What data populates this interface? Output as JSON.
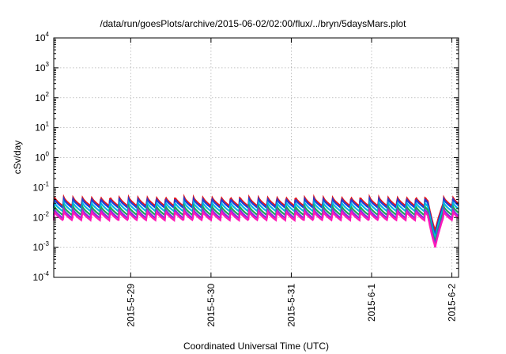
{
  "chart_data": {
    "type": "line",
    "title": "/data/run/goesPlots/archive/2015-06-02/02:00/flux/../bryn/5daysMars.plot",
    "xlabel": "Coordinated Universal Time (UTC)",
    "ylabel": "cSv/day",
    "y_scale": "log",
    "ylim": [
      0.0001,
      10000
    ],
    "y_ticks": [
      {
        "base": "10",
        "exp": "-4",
        "value": 0.0001
      },
      {
        "base": "10",
        "exp": "-3",
        "value": 0.001
      },
      {
        "base": "10",
        "exp": "-2",
        "value": 0.01
      },
      {
        "base": "10",
        "exp": "-1",
        "value": 0.1
      },
      {
        "base": "10",
        "exp": "0",
        "value": 1
      },
      {
        "base": "10",
        "exp": "1",
        "value": 10
      },
      {
        "base": "10",
        "exp": "2",
        "value": 100
      },
      {
        "base": "10",
        "exp": "3",
        "value": 1000
      },
      {
        "base": "10",
        "exp": "4",
        "value": 10000
      }
    ],
    "xlim": [
      "2015-05-28T01:00",
      "2015-06-02T02:00"
    ],
    "x_ticks": [
      {
        "label": "2015-5-29",
        "value": "2015-05-29T00:00"
      },
      {
        "label": "2015-5-30",
        "value": "2015-05-30T00:00"
      },
      {
        "label": "2015-5-31",
        "value": "2015-05-31T00:00"
      },
      {
        "label": "2015-6-1",
        "value": "2015-06-01T00:00"
      },
      {
        "label": "2015-6-2",
        "value": "2015-06-02T00:00"
      }
    ],
    "grid": true,
    "sawtooth_period_hours": 2.77,
    "dip": {
      "time": "2015-06-01T19:00",
      "min_values": [
        0.0035,
        0.0025,
        0.002,
        0.0015,
        0.0012,
        0.001
      ]
    },
    "series": [
      {
        "color": "#e8161b",
        "peak": 0.048,
        "trough": 0.024
      },
      {
        "color": "#1f3fd6",
        "peak": 0.042,
        "trough": 0.021
      },
      {
        "color": "#00b7e6",
        "peak": 0.032,
        "trough": 0.016
      },
      {
        "color": "#1ea55a",
        "peak": 0.024,
        "trough": 0.012
      },
      {
        "color": "#8a2be2",
        "peak": 0.019,
        "trough": 0.0095
      },
      {
        "color": "#ff1ab8",
        "peak": 0.016,
        "trough": 0.008
      }
    ]
  }
}
